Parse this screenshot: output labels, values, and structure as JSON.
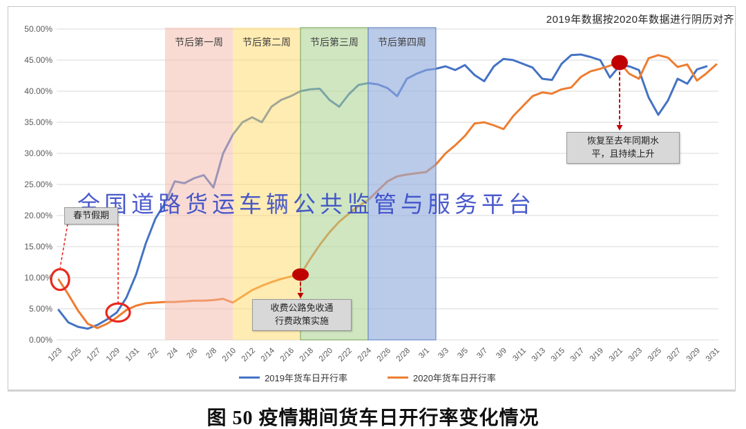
{
  "note": "2019年数据按2020年数据进行阴历对齐",
  "watermark": "全国道路货运车辆公共监管与服务平台",
  "caption": "图 50 疫情期间货车日开行率变化情况",
  "colors": {
    "series_2019": "#4472c4",
    "series_2020": "#ed7d31",
    "annotation_red": "#c00000",
    "circle_red": "#e8291d",
    "grid": "#d9d9d9",
    "axis_text": "#595959",
    "watermark_blue": "#3548c7",
    "annotation_box_bg": "#d8d8d8"
  },
  "chart_data": {
    "type": "line",
    "title": "",
    "xlabel": "",
    "ylabel": "",
    "ylim": [
      0,
      50
    ],
    "yticks": [
      "0.00%",
      "5.00%",
      "10.00%",
      "15.00%",
      "20.00%",
      "25.00%",
      "30.00%",
      "35.00%",
      "40.00%",
      "45.00%",
      "50.00%"
    ],
    "grid": "horizontal",
    "legend_position": "bottom",
    "xtick_every": 2,
    "x": [
      "1/23",
      "1/24",
      "1/25",
      "1/26",
      "1/27",
      "1/28",
      "1/29",
      "1/30",
      "1/31",
      "2/1",
      "2/2",
      "2/3",
      "2/4",
      "2/5",
      "2/6",
      "2/7",
      "2/8",
      "2/9",
      "2/10",
      "2/11",
      "2/12",
      "2/13",
      "2/14",
      "2/15",
      "2/16",
      "2/17",
      "2/18",
      "2/19",
      "2/20",
      "2/21",
      "2/22",
      "2/23",
      "2/24",
      "2/25",
      "2/26",
      "2/27",
      "2/28",
      "2/29",
      "3/1",
      "3/2",
      "3/3",
      "3/4",
      "3/5",
      "3/6",
      "3/7",
      "3/8",
      "3/9",
      "3/10",
      "3/11",
      "3/12",
      "3/13",
      "3/14",
      "3/15",
      "3/16",
      "3/17",
      "3/18",
      "3/19",
      "3/20",
      "3/21",
      "3/22",
      "3/23",
      "3/24",
      "3/25",
      "3/26",
      "3/27",
      "3/28",
      "3/29",
      "3/30",
      "3/31"
    ],
    "series": [
      {
        "name": "2019年货车日开行率",
        "color": "#4472c4",
        "values": [
          4.8,
          2.8,
          2.1,
          1.8,
          2.4,
          3.3,
          4.4,
          6.8,
          10.5,
          15.5,
          19.5,
          22.0,
          25.5,
          25.2,
          26.0,
          26.5,
          24.5,
          30.0,
          33.0,
          35.0,
          35.8,
          35.0,
          37.5,
          38.6,
          39.2,
          40.0,
          40.3,
          40.4,
          38.6,
          37.5,
          39.5,
          41.0,
          41.3,
          41.1,
          40.5,
          39.2,
          42.0,
          42.8,
          43.4,
          43.6,
          44.0,
          43.4,
          44.2,
          42.6,
          41.6,
          44.0,
          45.2,
          45.0,
          44.4,
          43.8,
          42.0,
          41.8,
          44.4,
          45.8,
          45.9,
          45.5,
          45.0,
          42.2,
          44.1,
          44.0,
          43.4,
          39.0,
          36.2,
          38.5,
          42.0,
          41.2,
          43.5,
          44.0,
          null
        ]
      },
      {
        "name": "2020年货车日开行率",
        "color": "#ed7d31",
        "values": [
          9.7,
          7.3,
          4.7,
          2.6,
          1.9,
          2.6,
          3.6,
          4.8,
          5.5,
          5.9,
          6.0,
          6.1,
          6.1,
          6.2,
          6.3,
          6.3,
          6.4,
          6.6,
          6.0,
          7.0,
          8.0,
          8.7,
          9.3,
          9.8,
          10.2,
          10.5,
          13.0,
          15.3,
          17.3,
          19.0,
          20.3,
          21.5,
          22.5,
          24.0,
          25.5,
          26.3,
          26.6,
          26.8,
          27.0,
          28.2,
          30.0,
          31.3,
          32.8,
          34.8,
          35.0,
          34.5,
          33.9,
          36.0,
          37.6,
          39.2,
          39.8,
          39.6,
          40.3,
          40.6,
          42.3,
          43.2,
          43.6,
          44.1,
          44.6,
          42.8,
          42.0,
          45.3,
          45.8,
          45.4,
          43.9,
          44.3,
          41.7,
          42.9,
          44.3
        ]
      }
    ],
    "bands": [
      {
        "label": "节后第一周",
        "start": "2/3",
        "end": "2/10",
        "fill": "rgba(244,184,168,0.5)",
        "border": null
      },
      {
        "label": "节后第二周",
        "start": "2/10",
        "end": "2/17",
        "fill": "rgba(255,217,102,0.5)",
        "border": null
      },
      {
        "label": "节后第三周",
        "start": "2/17",
        "end": "2/24",
        "fill": "rgba(169,209,142,0.55)",
        "border": "rgba(124,166,94,0.9)"
      },
      {
        "label": "节后第四周",
        "start": "2/24",
        "end": "3/2",
        "fill": "rgba(143,170,220,0.62)",
        "border": "rgba(104,136,198,0.95)"
      }
    ],
    "annotations": [
      {
        "id": "spring-festival",
        "type": "box-with-circles",
        "text": "春节假期",
        "circles": [
          {
            "date": "1/23",
            "value": 9.7
          },
          {
            "date": "1/29",
            "value": 4.4
          }
        ]
      },
      {
        "id": "toll-free",
        "type": "dot-arrow",
        "text": "收费公路免收通\n行费政策实施",
        "anchor": {
          "date": "2/17",
          "value": 10.5,
          "series": "2020年货车日开行率"
        }
      },
      {
        "id": "recovery",
        "type": "dot-arrow",
        "text": "恢复至去年同期水\n平，且持续上升",
        "anchor": {
          "date": "3/21",
          "value": 44.6,
          "series": "2020年货车日开行率"
        }
      }
    ]
  }
}
